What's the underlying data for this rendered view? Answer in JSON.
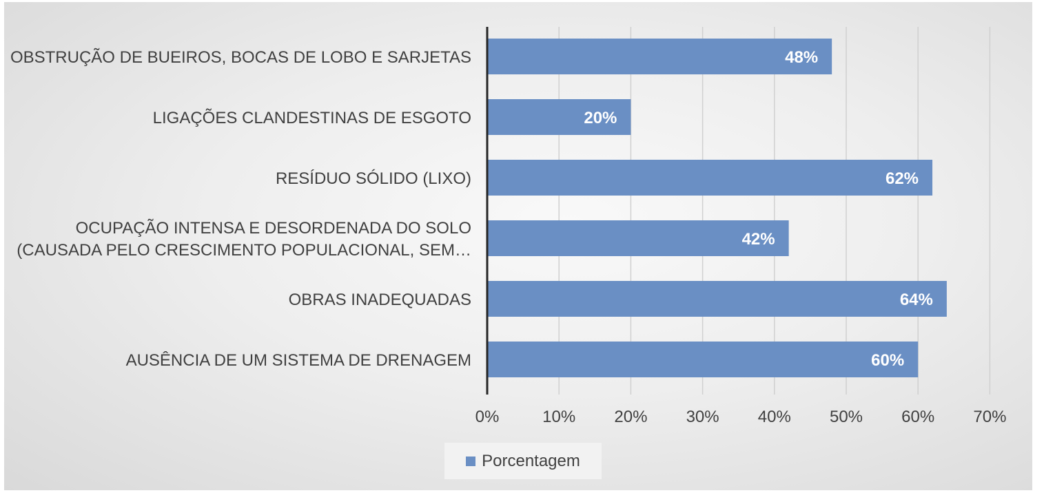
{
  "chart_data": {
    "type": "bar",
    "orientation": "horizontal",
    "categories": [
      [
        "OBSTRUÇÃO DE BUEIROS, BOCAS DE LOBO E SARJETAS"
      ],
      [
        "LIGAÇÕES CLANDESTINAS DE ESGOTO"
      ],
      [
        "RESÍDUO SÓLIDO (LIXO)"
      ],
      [
        "OCUPAÇÃO INTENSA E DESORDENADA DO SOLO",
        "(CAUSADA PELO CRESCIMENTO POPULACIONAL, SEM…"
      ],
      [
        "OBRAS INADEQUADAS"
      ],
      [
        "AUSÊNCIA DE UM SISTEMA DE DRENAGEM"
      ]
    ],
    "series": [
      {
        "name": "Porcentagem",
        "values": [
          48,
          20,
          62,
          42,
          64,
          60
        ],
        "data_labels": [
          "48%",
          "20%",
          "62%",
          "42%",
          "64%",
          "60%"
        ],
        "color": "#6a8fc4"
      }
    ],
    "xlim": [
      0,
      70
    ],
    "x_ticks": [
      0,
      10,
      20,
      30,
      40,
      50,
      60,
      70
    ],
    "x_tick_labels": [
      "0%",
      "10%",
      "20%",
      "30%",
      "40%",
      "50%",
      "60%",
      "70%"
    ],
    "grid": true,
    "legend": "bottom",
    "colors": {
      "bar": "#6a8fc4",
      "grid": "#d0d0d0",
      "axis": "#262626",
      "text": "#404040",
      "data_label": "#ffffff"
    }
  }
}
